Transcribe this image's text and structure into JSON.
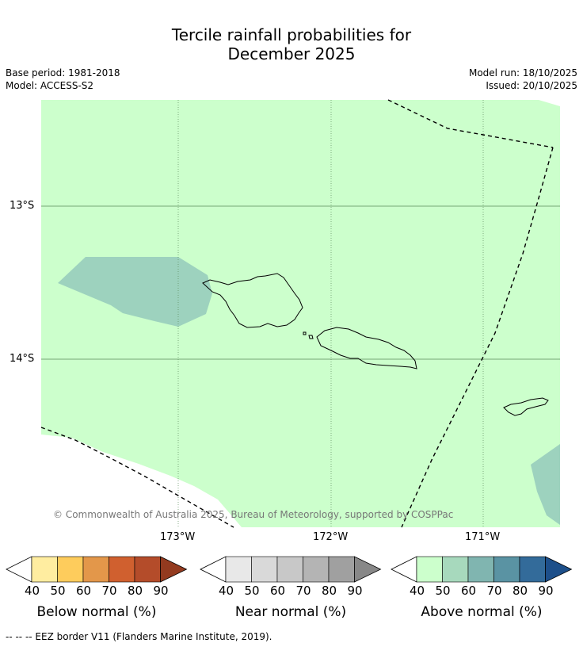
{
  "title": {
    "line1": "Tercile rainfall probabilities for",
    "line2": "December 2025"
  },
  "meta": {
    "base_period": "Base period: 1981-2018",
    "model": "Model: ACCESS-S2",
    "model_run": "Model run: 18/10/2025",
    "issued": "Issued: 20/10/2025"
  },
  "map": {
    "lat_labels": [
      "13°S",
      "14°S"
    ],
    "lon_labels": [
      "173°W",
      "172°W",
      "171°W"
    ],
    "copyright": "© Commonwealth of Australia 2025, Bureau of Meteorology, supported by COSPPac",
    "colors": {
      "above_40": "#ccffcc",
      "above_50": "#9dd2be",
      "eez_border": "#000000"
    }
  },
  "colorbars": [
    {
      "label": "Below normal (%)",
      "ticks": [
        "40",
        "50",
        "60",
        "70",
        "80",
        "90"
      ],
      "colors": [
        "#ffeda0",
        "#fecc5c",
        "#e3974a",
        "#d0602f",
        "#b44c2a",
        "#933a1f"
      ]
    },
    {
      "label": "Near normal (%)",
      "ticks": [
        "40",
        "50",
        "60",
        "70",
        "80",
        "90"
      ],
      "colors": [
        "#e8e8e8",
        "#d9d9d9",
        "#c8c8c8",
        "#b4b4b4",
        "#a0a0a0",
        "#888888"
      ]
    },
    {
      "label": "Above normal (%)",
      "ticks": [
        "40",
        "50",
        "60",
        "70",
        "80",
        "90"
      ],
      "colors": [
        "#ccffcc",
        "#a7d9bd",
        "#80b5b0",
        "#5a93a3",
        "#336b9a",
        "#1d4f8a"
      ]
    }
  ],
  "legend": {
    "eez": "--  --  -- EEZ border V11 (Flanders Marine Institute, 2019)."
  }
}
